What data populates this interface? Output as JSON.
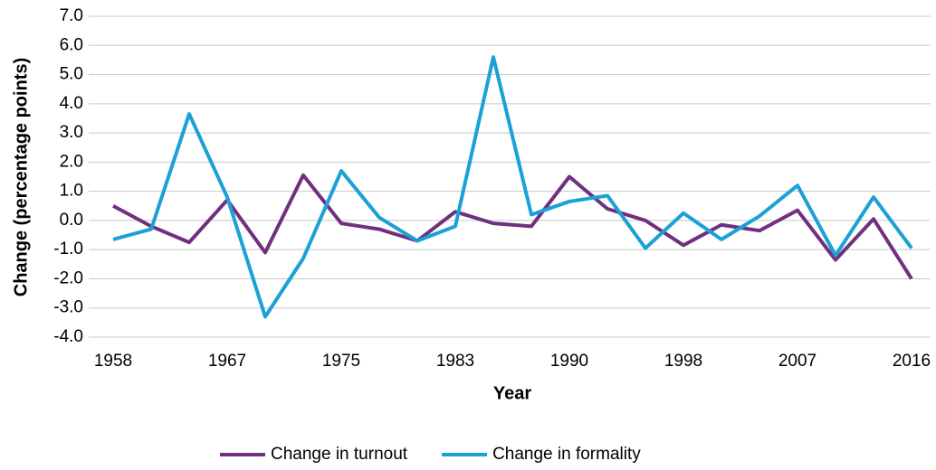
{
  "chart_data": {
    "type": "line",
    "x_label": "Year",
    "y_label": "Change (percentage points)",
    "categories": [
      "1958",
      null,
      null,
      "1967",
      null,
      null,
      "1975",
      null,
      null,
      "1983",
      null,
      null,
      "1990",
      null,
      null,
      "1998",
      null,
      null,
      "2007",
      null,
      null,
      "2016"
    ],
    "series": [
      {
        "name": "Change in turnout",
        "color": "#70307f",
        "values": [
          0.5,
          -0.2,
          -0.75,
          0.7,
          -1.1,
          1.55,
          -0.1,
          -0.3,
          -0.7,
          0.3,
          -0.1,
          -0.2,
          1.5,
          0.4,
          0.0,
          -0.85,
          -0.15,
          -0.35,
          0.35,
          -1.35,
          0.05,
          -2.0
        ]
      },
      {
        "name": "Change in formality",
        "color": "#1ba1d6",
        "values": [
          -0.65,
          -0.3,
          3.65,
          0.8,
          -3.3,
          -1.3,
          1.7,
          0.1,
          -0.7,
          -0.2,
          5.6,
          0.2,
          0.65,
          0.85,
          -0.95,
          0.25,
          -0.65,
          0.15,
          1.2,
          -1.2,
          0.8,
          -0.95
        ]
      }
    ],
    "ylim": [
      -4,
      7
    ],
    "yticks": [
      {
        "value": -4,
        "label": "-4.0"
      },
      {
        "value": -3,
        "label": "-3.0"
      },
      {
        "value": -2,
        "label": "-2.0"
      },
      {
        "value": -1,
        "label": "-1.0"
      },
      {
        "value": 0,
        "label": "0.0"
      },
      {
        "value": 1,
        "label": "1.0"
      },
      {
        "value": 2,
        "label": "2.0"
      },
      {
        "value": 3,
        "label": "3.0"
      },
      {
        "value": 4,
        "label": "4.0"
      },
      {
        "value": 5,
        "label": "5.0"
      },
      {
        "value": 6,
        "label": "6.0"
      },
      {
        "value": 7,
        "label": "7.0"
      }
    ],
    "grid": true,
    "legend": "bottom"
  }
}
